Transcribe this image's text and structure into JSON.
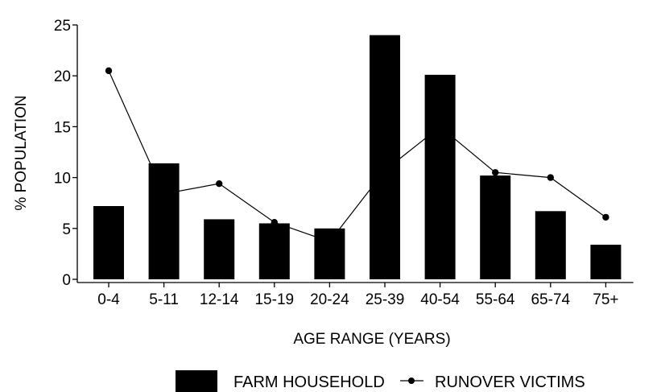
{
  "chart_data": {
    "type": "bar",
    "categories": [
      "0-4",
      "5-11",
      "12-14",
      "15-19",
      "20-24",
      "25-39",
      "40-54",
      "55-64",
      "65-74",
      "75+"
    ],
    "series": [
      {
        "name": "FARM HOUSEHOLD",
        "kind": "bar",
        "values": [
          7.2,
          11.4,
          5.9,
          5.5,
          5.0,
          24.0,
          20.1,
          10.2,
          6.7,
          3.4
        ]
      },
      {
        "name": "RUNOVER VICTIMS",
        "kind": "line",
        "values": [
          20.5,
          8.4,
          9.4,
          5.6,
          3.7,
          10.7,
          15.0,
          10.5,
          10.0,
          6.1
        ]
      }
    ],
    "xlabel": "AGE RANGE (YEARS)",
    "ylabel": "% POPULATION",
    "ylim": [
      0,
      25
    ],
    "yticks": [
      0,
      5,
      10,
      15,
      20,
      25
    ],
    "grid": false,
    "legend_position": "bottom"
  },
  "colors": {
    "bar": "#000000",
    "line": "#000000"
  }
}
